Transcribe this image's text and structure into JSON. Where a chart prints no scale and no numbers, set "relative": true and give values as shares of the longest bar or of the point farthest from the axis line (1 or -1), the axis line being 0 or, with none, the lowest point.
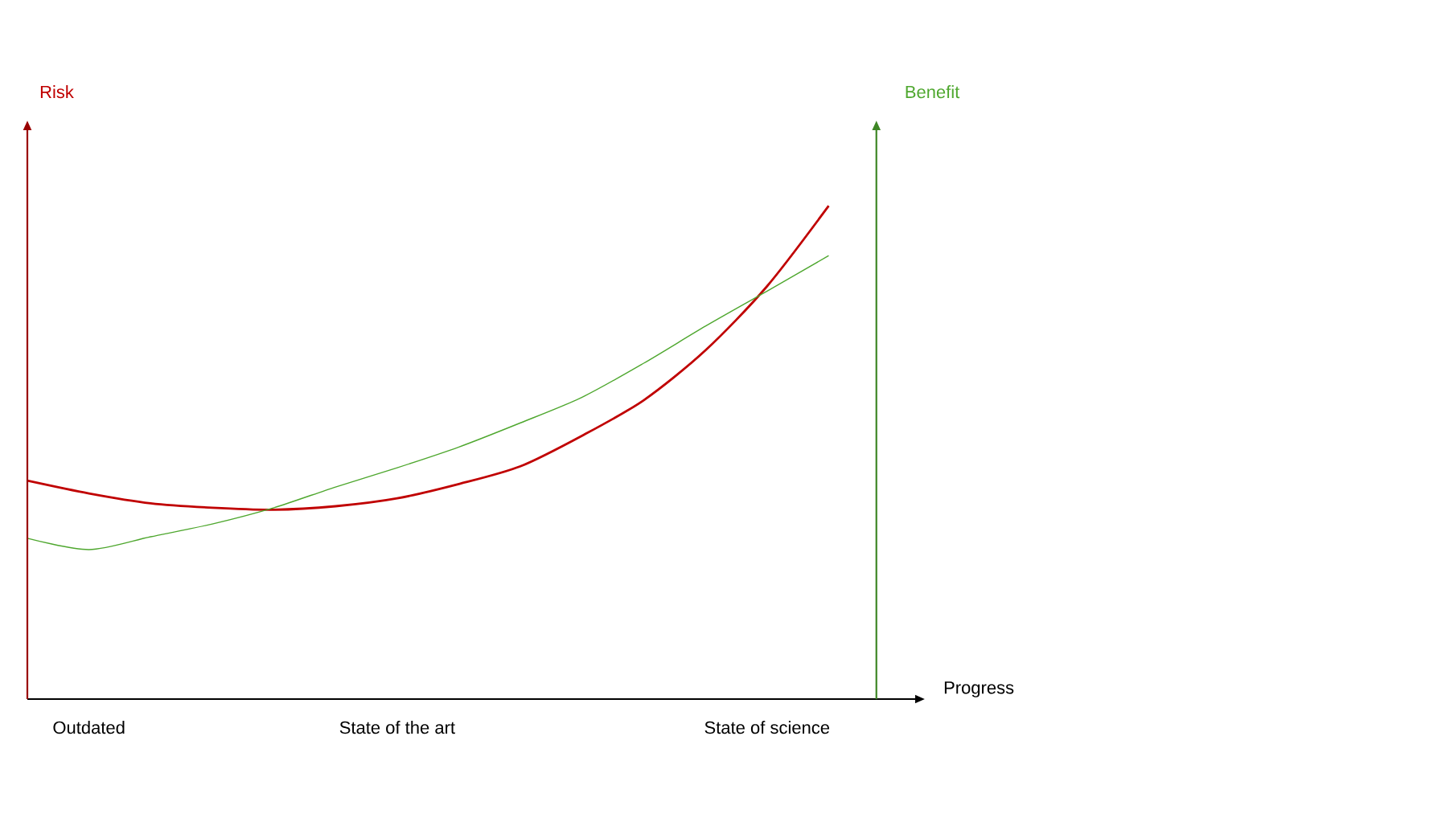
{
  "chart_data": {
    "type": "line",
    "relative": true,
    "annotations": [
      "Risk",
      "Benefit"
    ],
    "xlabel": "Progress",
    "categories": [
      null,
      "Outdated",
      null,
      null,
      null,
      null,
      "State of the art",
      null,
      null,
      null,
      null,
      null,
      "State of science",
      null
    ],
    "series": [
      {
        "color": "#c00000",
        "values": [
          0.443,
          0.417,
          0.397,
          0.388,
          0.384,
          0.391,
          0.407,
          0.436,
          0.472,
          0.534,
          0.606,
          0.707,
          0.837,
          1
        ]
      },
      {
        "color": "#4ea72e",
        "values": [
          0.326,
          0.303,
          0.329,
          0.355,
          0.388,
          0.43,
          0.469,
          0.511,
          0.56,
          0.612,
          0.681,
          0.756,
          0.827,
          0.899
        ]
      }
    ],
    "grid": false
  }
}
